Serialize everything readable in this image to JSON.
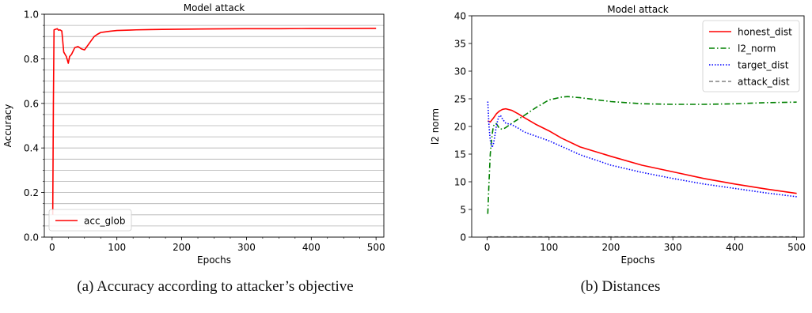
{
  "chart_data": [
    {
      "type": "line",
      "title": "Model attack",
      "xlabel": "Epochs",
      "ylabel": "Accuracy",
      "xlim": [
        -12,
        512
      ],
      "ylim": [
        0.0,
        1.0
      ],
      "xticks": [
        0,
        100,
        200,
        300,
        400,
        500
      ],
      "yticks": [
        0.0,
        0.2,
        0.4,
        0.6,
        0.8,
        1.0
      ],
      "ytick_labels": [
        "0.0",
        "0.2",
        "0.4",
        "0.6",
        "0.8",
        "1.0"
      ],
      "grid": "horizontal",
      "legend": "lower-left",
      "series": [
        {
          "name": "acc_glob",
          "color": "#ff0000",
          "dash": "solid",
          "x": [
            1,
            2,
            3,
            5,
            8,
            10,
            12,
            15,
            18,
            20,
            22,
            25,
            27,
            30,
            35,
            40,
            45,
            50,
            55,
            60,
            65,
            70,
            75,
            80,
            90,
            100,
            110,
            120,
            130,
            150,
            170,
            200,
            250,
            300,
            350,
            400,
            450,
            500
          ],
          "y": [
            0.1,
            0.6,
            0.93,
            0.932,
            0.935,
            0.928,
            0.93,
            0.925,
            0.83,
            0.82,
            0.81,
            0.78,
            0.81,
            0.82,
            0.85,
            0.855,
            0.845,
            0.84,
            0.86,
            0.88,
            0.9,
            0.91,
            0.918,
            0.92,
            0.924,
            0.927,
            0.928,
            0.929,
            0.93,
            0.931,
            0.932,
            0.933,
            0.934,
            0.935,
            0.935,
            0.936,
            0.936,
            0.937
          ]
        }
      ]
    },
    {
      "type": "line",
      "title": "Model attack",
      "xlabel": "Epochs",
      "ylabel": "l2 norm",
      "xlim": [
        -25,
        512
      ],
      "ylim": [
        0,
        40
      ],
      "xticks": [
        0,
        100,
        200,
        300,
        400,
        500
      ],
      "yticks": [
        0,
        5,
        10,
        15,
        20,
        25,
        30,
        35,
        40
      ],
      "grid": "off",
      "legend": "top-right",
      "series": [
        {
          "name": "honest_dist",
          "color": "#ff0000",
          "dash": "solid",
          "x": [
            1,
            5,
            10,
            15,
            20,
            25,
            30,
            40,
            50,
            60,
            80,
            100,
            120,
            150,
            200,
            250,
            300,
            350,
            400,
            450,
            500
          ],
          "y": [
            21.0,
            20.8,
            21.5,
            22.3,
            22.8,
            23.1,
            23.2,
            22.9,
            22.3,
            21.6,
            20.3,
            19.2,
            17.9,
            16.3,
            14.6,
            13.0,
            11.8,
            10.6,
            9.6,
            8.7,
            7.9
          ]
        },
        {
          "name": "l2_norm",
          "color": "#008000",
          "dash": "dashdot",
          "x": [
            1,
            3,
            5,
            8,
            10,
            12,
            15,
            20,
            25,
            30,
            40,
            50,
            60,
            80,
            100,
            120,
            130,
            150,
            200,
            250,
            300,
            350,
            400,
            450,
            500
          ],
          "y": [
            4.2,
            10.0,
            15.0,
            18.5,
            20.0,
            20.5,
            20.5,
            19.6,
            19.5,
            19.8,
            20.6,
            21.3,
            22.0,
            23.5,
            24.8,
            25.3,
            25.4,
            25.2,
            24.5,
            24.1,
            24.0,
            24.0,
            24.1,
            24.3,
            24.4
          ]
        },
        {
          "name": "target_dist",
          "color": "#0000ff",
          "dash": "dotted",
          "x": [
            1,
            3,
            5,
            8,
            10,
            12,
            15,
            18,
            20,
            22,
            25,
            30,
            40,
            50,
            60,
            80,
            100,
            120,
            150,
            200,
            250,
            300,
            350,
            400,
            450,
            500
          ],
          "y": [
            24.5,
            20.0,
            17.5,
            16.2,
            16.8,
            18.0,
            20.2,
            21.5,
            22.0,
            21.9,
            21.3,
            20.6,
            20.3,
            19.7,
            19.0,
            18.2,
            17.4,
            16.4,
            14.9,
            13.0,
            11.7,
            10.6,
            9.6,
            8.8,
            8.0,
            7.3
          ]
        },
        {
          "name": "attack_dist",
          "color": "#808080",
          "dash": "dashed",
          "x": [
            1,
            500
          ],
          "y": [
            0.05,
            0.05
          ]
        }
      ]
    }
  ],
  "captions": {
    "a": "(a) Accuracy according to attacker’s objective",
    "b": "(b) Distances"
  }
}
